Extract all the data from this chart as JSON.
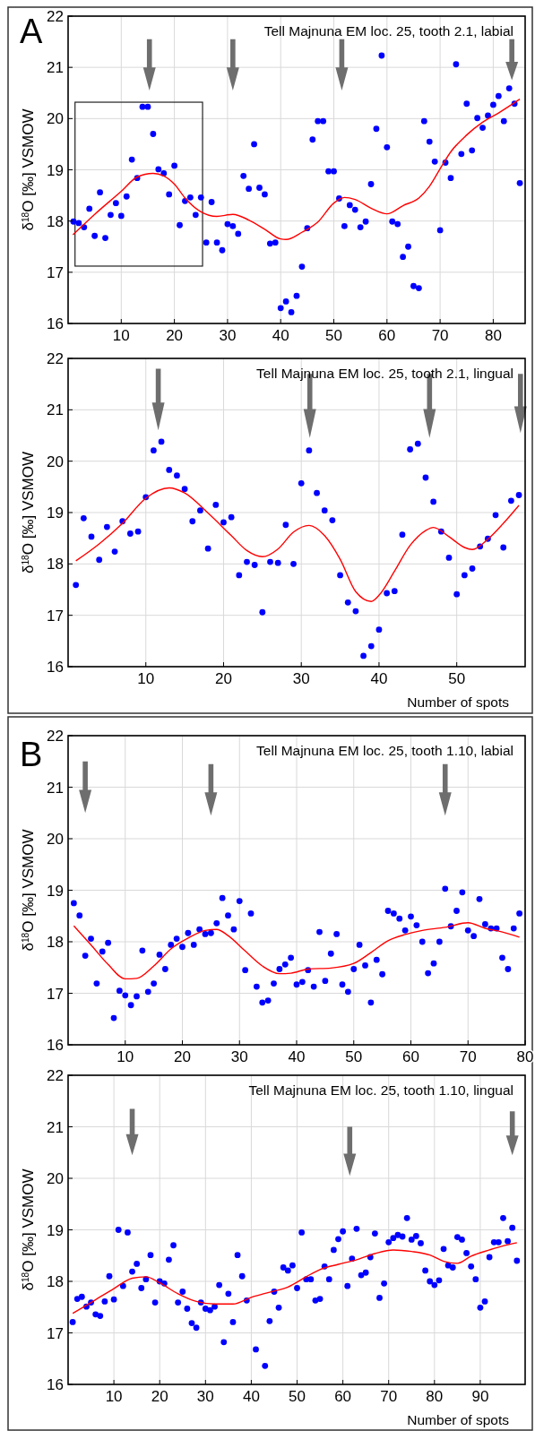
{
  "chart_data": [
    {
      "type": "scatter",
      "title": "Tell Majnuna EM loc. 25, tooth 2.1, labial",
      "ylabel": "δ$^{18}$O [‰] VSMOW",
      "annotations": [
        "A"
      ],
      "xlim": [
        0,
        86
      ],
      "ylim": [
        16,
        22
      ],
      "xticks": [
        10,
        20,
        30,
        40,
        50,
        60,
        70,
        80
      ],
      "yticks": [
        16,
        17,
        18,
        19,
        20,
        21,
        22
      ],
      "grid": true,
      "series": [
        {
          "marker": "circle",
          "color": "#0000ff",
          "x": [
            1,
            2,
            3,
            4,
            5,
            6,
            7,
            8,
            9,
            10,
            11,
            12,
            13,
            14,
            15,
            16,
            17,
            18,
            19,
            20,
            21,
            22,
            23,
            24,
            25,
            26,
            27,
            28,
            29,
            30,
            31,
            32,
            33,
            34,
            35,
            36,
            37,
            38,
            39,
            40,
            41,
            42,
            43,
            44,
            45,
            46,
            47,
            48,
            49,
            50,
            51,
            52,
            53,
            54,
            55,
            56,
            57,
            58,
            59,
            60,
            61,
            62,
            63,
            64,
            65,
            66,
            67,
            68,
            69,
            70,
            71,
            72,
            73,
            74,
            75,
            76,
            77,
            78,
            79,
            80,
            81,
            82,
            83,
            84,
            85
          ],
          "values": [
            17.99,
            17.96,
            17.88,
            18.24,
            17.71,
            18.56,
            17.67,
            18.12,
            18.35,
            18.1,
            18.48,
            19.2,
            18.84,
            20.23,
            20.23,
            19.7,
            19.01,
            18.93,
            18.52,
            19.08,
            17.92,
            18.39,
            18.46,
            18.12,
            18.46,
            17.58,
            18.37,
            17.58,
            17.43,
            17.94,
            17.9,
            17.75,
            18.88,
            18.63,
            19.5,
            18.65,
            18.52,
            17.56,
            17.58,
            16.3,
            16.43,
            16.22,
            16.54,
            17.11,
            17.86,
            19.59,
            19.95,
            19.95,
            18.97,
            18.97,
            18.44,
            17.9,
            18.31,
            18.22,
            17.88,
            17.99,
            18.72,
            19.8,
            21.23,
            19.44,
            17.99,
            17.94,
            17.3,
            17.5,
            16.73,
            16.69,
            19.95,
            19.55,
            19.16,
            17.82,
            19.14,
            18.84,
            21.06,
            19.31,
            20.29,
            19.38,
            20.01,
            19.82,
            20.06,
            20.27,
            20.44,
            19.95,
            20.59,
            20.29,
            18.74
          ]
        },
        {
          "type": "line",
          "color": "#ff0000",
          "x": [
            0.9,
            5,
            10,
            13,
            16,
            18,
            20,
            22,
            25,
            28,
            31,
            34,
            37,
            40,
            41,
            44,
            47,
            50,
            52,
            54,
            57,
            60,
            63,
            66,
            68,
            70,
            72,
            75,
            78,
            81,
            85
          ],
          "values": [
            17.73,
            18.13,
            18.58,
            18.86,
            18.93,
            18.88,
            18.72,
            18.45,
            18.18,
            18.09,
            18.13,
            18.02,
            17.84,
            17.65,
            17.64,
            17.78,
            17.98,
            18.35,
            18.46,
            18.42,
            18.25,
            18.14,
            18.3,
            18.45,
            18.68,
            19.02,
            19.35,
            19.68,
            19.93,
            20.11,
            20.38
          ]
        }
      ]
    },
    {
      "type": "scatter",
      "title": "Tell Majnuna EM loc. 25, tooth 2.1, lingual",
      "ylabel": "δ$^{18}$O [‰] VSMOW",
      "xlabel": "Number of spots",
      "xlim": [
        0,
        58.8
      ],
      "ylim": [
        16,
        22
      ],
      "xticks": [
        10,
        20,
        30,
        40,
        50
      ],
      "yticks": [
        16,
        17,
        18,
        19,
        20,
        21,
        22
      ],
      "grid": true,
      "series": [
        {
          "marker": "circle",
          "color": "#0000ff",
          "x": [
            1,
            2,
            3,
            4,
            5,
            6,
            7,
            8,
            9,
            10,
            11,
            12,
            13,
            14,
            15,
            16,
            17,
            18,
            19,
            20,
            21,
            22,
            23,
            24,
            25,
            26,
            27,
            28,
            29,
            30,
            31,
            32,
            33,
            34,
            35,
            36,
            37,
            38,
            39,
            40,
            41,
            42,
            43,
            44,
            45,
            46,
            47,
            48,
            49,
            50,
            51,
            52,
            53,
            54,
            55,
            56,
            57,
            58
          ],
          "values": [
            17.59,
            18.89,
            18.53,
            18.08,
            18.72,
            18.24,
            18.83,
            18.59,
            18.63,
            19.3,
            20.21,
            20.38,
            19.83,
            19.72,
            19.46,
            18.83,
            19.04,
            18.3,
            19.15,
            18.81,
            18.91,
            17.78,
            18.04,
            17.98,
            17.06,
            18.04,
            18.02,
            18.76,
            18.0,
            19.57,
            20.21,
            19.38,
            19.04,
            18.85,
            17.78,
            17.25,
            17.08,
            16.21,
            16.4,
            16.72,
            17.43,
            17.47,
            18.57,
            20.23,
            20.34,
            19.68,
            19.21,
            18.63,
            18.12,
            17.41,
            17.78,
            17.91,
            18.34,
            18.49,
            18.95,
            18.32,
            19.23,
            19.34
          ]
        },
        {
          "type": "line",
          "color": "#ff0000",
          "x": [
            1,
            4,
            7,
            10,
            13,
            15,
            18,
            21,
            23,
            25,
            27,
            29,
            31,
            33,
            35,
            37,
            39,
            40,
            42,
            44,
            46,
            47,
            49,
            51,
            52,
            54,
            56,
            58
          ],
          "values": [
            18.06,
            18.39,
            18.79,
            19.28,
            19.48,
            19.38,
            18.99,
            18.55,
            18.26,
            18.14,
            18.29,
            18.62,
            18.75,
            18.55,
            18.09,
            17.46,
            17.27,
            17.39,
            17.86,
            18.36,
            18.65,
            18.71,
            18.53,
            18.32,
            18.28,
            18.48,
            18.79,
            19.14
          ]
        }
      ]
    },
    {
      "type": "scatter",
      "title": "Tell Majnuna EM loc. 25, tooth 1.10, labial",
      "ylabel": "δ$^{18}$O [‰] VSMOW",
      "annotations": [
        "B"
      ],
      "xlim": [
        0,
        80
      ],
      "ylim": [
        16,
        22
      ],
      "xticks": [
        10,
        20,
        30,
        40,
        50,
        60,
        70,
        80
      ],
      "yticks": [
        16,
        17,
        18,
        19,
        20,
        21,
        22
      ],
      "grid": true,
      "series": [
        {
          "marker": "circle",
          "color": "#0000ff",
          "x": [
            1,
            2,
            3,
            4,
            5,
            6,
            7,
            8,
            9,
            10,
            11,
            12,
            13,
            14,
            15,
            16,
            17,
            18,
            19,
            20,
            21,
            22,
            23,
            24,
            25,
            26,
            27,
            28,
            29,
            30,
            31,
            32,
            33,
            34,
            35,
            36,
            37,
            38,
            39,
            40,
            41,
            42,
            43,
            44,
            45,
            46,
            47,
            48,
            49,
            50,
            51,
            52,
            53,
            54,
            55,
            56,
            57,
            58,
            59,
            60,
            61,
            62,
            63,
            64,
            65,
            66,
            67,
            68,
            69,
            70,
            71,
            72,
            73,
            74,
            75,
            76,
            77,
            78,
            79
          ],
          "values": [
            18.75,
            18.51,
            17.73,
            18.06,
            17.19,
            17.81,
            17.98,
            16.52,
            17.05,
            16.96,
            16.77,
            16.94,
            17.83,
            17.03,
            17.19,
            17.75,
            17.47,
            17.94,
            18.06,
            17.9,
            18.17,
            17.94,
            18.24,
            18.15,
            18.17,
            18.36,
            18.85,
            18.51,
            18.24,
            18.79,
            17.45,
            18.55,
            17.13,
            16.82,
            16.86,
            17.19,
            17.47,
            17.56,
            17.69,
            17.17,
            17.22,
            17.45,
            17.13,
            18.19,
            17.24,
            17.77,
            18.15,
            17.17,
            17.03,
            17.47,
            17.94,
            17.54,
            16.82,
            17.65,
            17.37,
            18.6,
            18.55,
            18.45,
            18.22,
            18.49,
            18.32,
            18.0,
            17.39,
            17.58,
            18.0,
            19.03,
            18.3,
            18.6,
            18.96,
            18.22,
            18.11,
            18.83,
            18.34,
            18.26,
            18.26,
            17.69,
            17.47,
            18.26,
            18.55
          ]
        },
        {
          "type": "line",
          "color": "#ff0000",
          "x": [
            1,
            4,
            7,
            10,
            12,
            15,
            18,
            21,
            24,
            26,
            28,
            31,
            34,
            37,
            39,
            42,
            46,
            50,
            53,
            56,
            59,
            62,
            66,
            70,
            73,
            76,
            79
          ],
          "values": [
            18.31,
            17.94,
            17.56,
            17.28,
            17.29,
            17.53,
            17.86,
            18.07,
            18.22,
            18.24,
            18.12,
            17.82,
            17.53,
            17.38,
            17.39,
            17.47,
            17.49,
            17.58,
            17.79,
            18.02,
            18.14,
            18.22,
            18.28,
            18.37,
            18.26,
            18.19,
            18.09
          ]
        }
      ]
    },
    {
      "type": "scatter",
      "title": "Tell Majnuna EM loc. 25, tooth 1.10, lingual",
      "ylabel": "δ$^{18}$O [‰] VSMOW",
      "xlabel": "Number of spots",
      "xlim": [
        0,
        99.8
      ],
      "ylim": [
        16,
        22
      ],
      "xticks": [
        10,
        20,
        30,
        40,
        50,
        60,
        70,
        80,
        90
      ],
      "yticks": [
        16,
        17,
        18,
        19,
        20,
        21,
        22
      ],
      "grid": true,
      "series": [
        {
          "marker": "circle",
          "color": "#0000ff",
          "x": [
            1,
            2,
            3,
            4,
            5,
            6,
            7,
            8,
            9,
            10,
            11,
            12,
            13,
            14,
            15,
            16,
            17,
            18,
            19,
            20,
            21,
            22,
            23,
            24,
            25,
            26,
            27,
            28,
            29,
            30,
            31,
            32,
            33,
            34,
            35,
            36,
            37,
            38,
            39,
            41,
            43,
            44,
            45,
            46,
            47,
            48,
            49,
            50,
            51,
            52,
            53,
            54,
            55,
            56,
            57,
            58,
            59,
            60,
            61,
            62,
            63,
            64,
            65,
            66,
            67,
            68,
            69,
            70,
            71,
            72,
            73,
            74,
            75,
            76,
            77,
            78,
            79,
            80,
            81,
            82,
            83,
            84,
            85,
            86,
            87,
            88,
            89,
            90,
            91,
            92,
            93,
            94,
            95,
            96,
            97,
            98
          ],
          "values": [
            17.21,
            17.66,
            17.7,
            17.51,
            17.59,
            17.36,
            17.33,
            17.61,
            18.1,
            17.65,
            19.0,
            17.91,
            18.95,
            18.19,
            18.34,
            17.87,
            18.04,
            18.51,
            17.59,
            18.0,
            17.96,
            18.42,
            18.7,
            17.59,
            17.8,
            17.47,
            17.19,
            17.1,
            17.59,
            17.47,
            17.44,
            17.51,
            17.93,
            16.82,
            17.76,
            17.21,
            18.51,
            18.1,
            17.63,
            16.68,
            16.36,
            17.23,
            17.8,
            17.49,
            18.27,
            18.21,
            18.31,
            17.87,
            18.95,
            18.04,
            18.04,
            17.63,
            17.66,
            18.29,
            18.04,
            18.61,
            18.82,
            18.97,
            17.91,
            18.44,
            19.02,
            18.12,
            18.17,
            18.47,
            18.93,
            17.68,
            17.96,
            18.76,
            18.84,
            18.9,
            18.87,
            19.23,
            18.81,
            18.88,
            18.74,
            18.21,
            18.0,
            17.93,
            18.02,
            18.63,
            18.31,
            18.27,
            18.86,
            18.81,
            18.55,
            18.29,
            18.04,
            17.49,
            17.61,
            18.47,
            18.76,
            18.76,
            19.23,
            18.78,
            19.04,
            18.4
          ]
        },
        {
          "type": "line",
          "color": "#ff0000",
          "x": [
            1,
            5,
            10,
            14,
            17,
            20,
            24,
            28,
            32,
            36,
            40,
            44,
            48,
            52,
            55,
            59,
            63,
            67,
            71,
            75,
            79,
            82,
            85,
            88,
            92,
            95,
            98
          ],
          "values": [
            17.38,
            17.59,
            17.86,
            18.06,
            18.09,
            17.97,
            17.76,
            17.61,
            17.56,
            17.56,
            17.69,
            17.79,
            17.89,
            18.09,
            18.23,
            18.33,
            18.42,
            18.54,
            18.61,
            18.58,
            18.51,
            18.39,
            18.35,
            18.49,
            18.61,
            18.69,
            18.75
          ]
        }
      ]
    }
  ]
}
